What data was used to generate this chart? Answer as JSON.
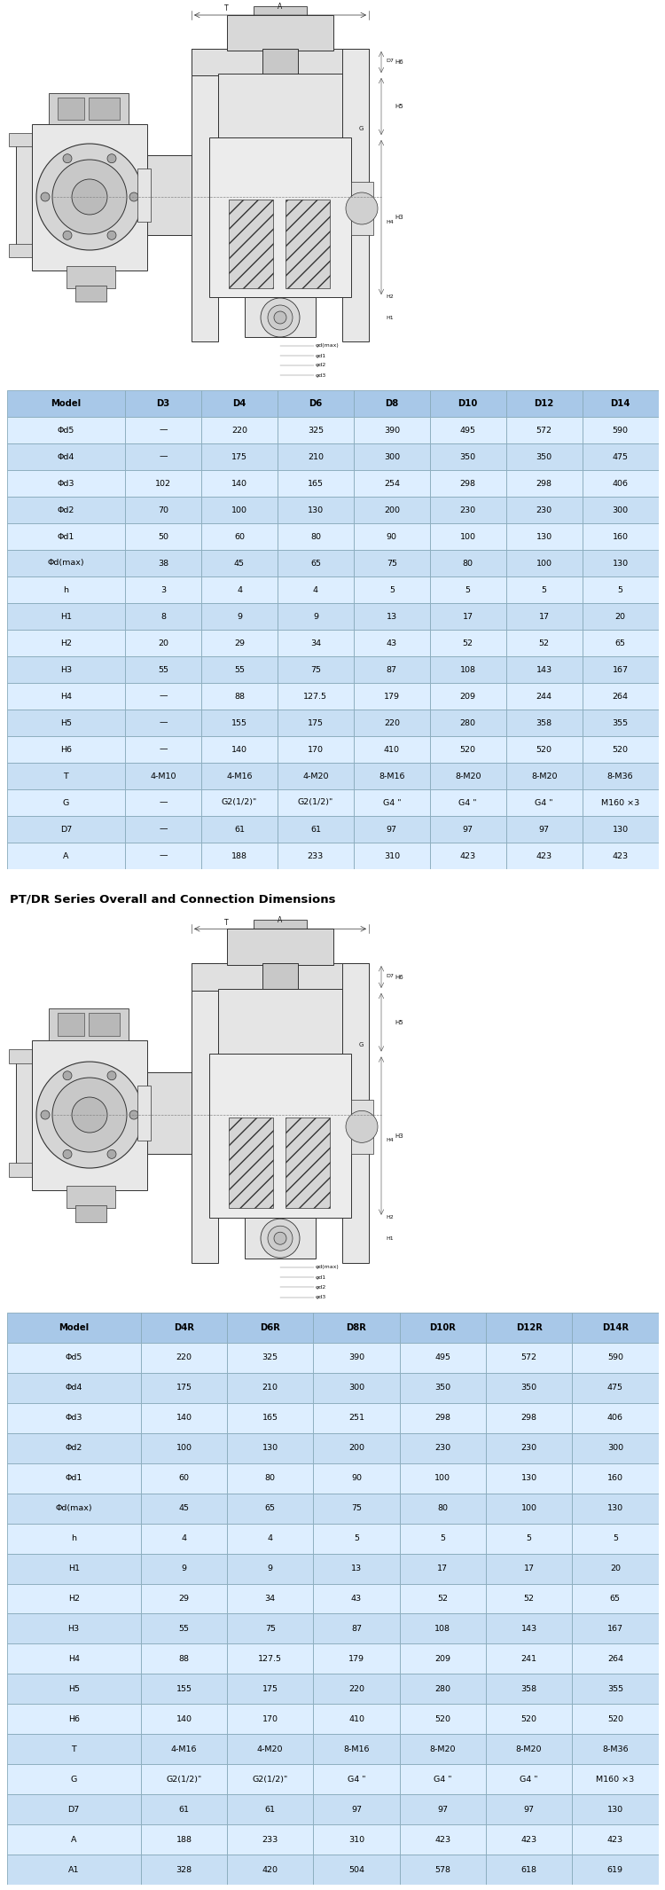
{
  "table1_headers": [
    "Model",
    "D3",
    "D4",
    "D6",
    "D8",
    "D10",
    "D12",
    "D14"
  ],
  "table1_rows": [
    [
      "Φd5",
      "—",
      "220",
      "325",
      "390",
      "495",
      "572",
      "590"
    ],
    [
      "Φd4",
      "—",
      "175",
      "210",
      "300",
      "350",
      "350",
      "475"
    ],
    [
      "Φd3",
      "102",
      "140",
      "165",
      "254",
      "298",
      "298",
      "406"
    ],
    [
      "Φd2",
      "70",
      "100",
      "130",
      "200",
      "230",
      "230",
      "300"
    ],
    [
      "Φd1",
      "50",
      "60",
      "80",
      "90",
      "100",
      "130",
      "160"
    ],
    [
      "Φd(max)",
      "38",
      "45",
      "65",
      "75",
      "80",
      "100",
      "130"
    ],
    [
      "h",
      "3",
      "4",
      "4",
      "5",
      "5",
      "5",
      "5"
    ],
    [
      "H1",
      "8",
      "9",
      "9",
      "13",
      "17",
      "17",
      "20"
    ],
    [
      "H2",
      "20",
      "29",
      "34",
      "43",
      "52",
      "52",
      "65"
    ],
    [
      "H3",
      "55",
      "55",
      "75",
      "87",
      "108",
      "143",
      "167"
    ],
    [
      "H4",
      "—",
      "88",
      "127.5",
      "179",
      "209",
      "244",
      "264"
    ],
    [
      "H5",
      "—",
      "155",
      "175",
      "220",
      "280",
      "358",
      "355"
    ],
    [
      "H6",
      "—",
      "140",
      "170",
      "410",
      "520",
      "520",
      "520"
    ],
    [
      "T",
      "4-M10",
      "4-M16",
      "4-M20",
      "8-M16",
      "8-M20",
      "8-M20",
      "8-M36"
    ],
    [
      "G",
      "—",
      "G2(1/2)\"",
      "G2(1/2)\"",
      "G4 \"",
      "G4 \"",
      "G4 \"",
      "M160 ×3"
    ],
    [
      "D7",
      "—",
      "61",
      "61",
      "97",
      "97",
      "97",
      "130"
    ],
    [
      "A",
      "—",
      "188",
      "233",
      "310",
      "423",
      "423",
      "423"
    ]
  ],
  "table2_headers": [
    "Model",
    "D4R",
    "D6R",
    "D8R",
    "D10R",
    "D12R",
    "D14R"
  ],
  "table2_rows": [
    [
      "Φd5",
      "220",
      "325",
      "390",
      "495",
      "572",
      "590"
    ],
    [
      "Φd4",
      "175",
      "210",
      "300",
      "350",
      "350",
      "475"
    ],
    [
      "Φd3",
      "140",
      "165",
      "251",
      "298",
      "298",
      "406"
    ],
    [
      "Φd2",
      "100",
      "130",
      "200",
      "230",
      "230",
      "300"
    ],
    [
      "Φd1",
      "60",
      "80",
      "90",
      "100",
      "130",
      "160"
    ],
    [
      "Φd(max)",
      "45",
      "65",
      "75",
      "80",
      "100",
      "130"
    ],
    [
      "h",
      "4",
      "4",
      "5",
      "5",
      "5",
      "5"
    ],
    [
      "H1",
      "9",
      "9",
      "13",
      "17",
      "17",
      "20"
    ],
    [
      "H2",
      "29",
      "34",
      "43",
      "52",
      "52",
      "65"
    ],
    [
      "H3",
      "55",
      "75",
      "87",
      "108",
      "143",
      "167"
    ],
    [
      "H4",
      "88",
      "127.5",
      "179",
      "209",
      "241",
      "264"
    ],
    [
      "H5",
      "155",
      "175",
      "220",
      "280",
      "358",
      "355"
    ],
    [
      "H6",
      "140",
      "170",
      "410",
      "520",
      "520",
      "520"
    ],
    [
      "T",
      "4-M16",
      "4-M20",
      "8-M16",
      "8-M20",
      "8-M20",
      "8-M36"
    ],
    [
      "G",
      "G2(1/2)\"",
      "G2(1/2)\"",
      "G4 \"",
      "G4 \"",
      "G4 \"",
      "M160 ×3"
    ],
    [
      "D7",
      "61",
      "61",
      "97",
      "97",
      "97",
      "130"
    ],
    [
      "A",
      "188",
      "233",
      "310",
      "423",
      "423",
      "423"
    ],
    [
      "A1",
      "328",
      "420",
      "504",
      "578",
      "618",
      "619"
    ]
  ],
  "header_bg": "#a8c8e8",
  "header_text": "#000000",
  "row_bg_even": "#ddeeff",
  "row_bg_odd": "#c8dff4",
  "border_color": "#88aabb",
  "text_color": "#000000",
  "bg_color": "#ffffff",
  "section2_title": "PT/DR Series Overall and Connection Dimensions",
  "lc": "#333333",
  "lw": 0.7
}
